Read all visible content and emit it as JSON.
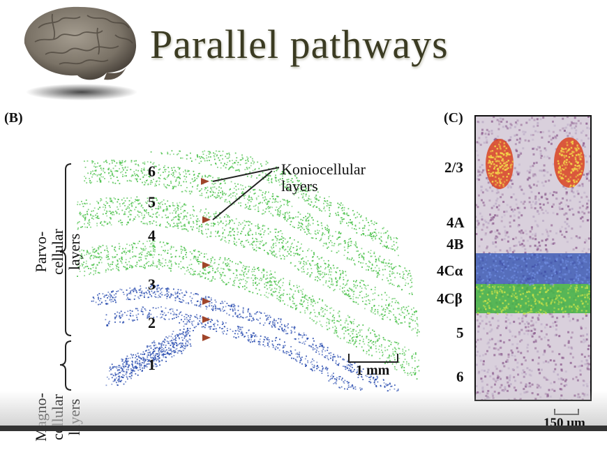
{
  "title": "Parallel pathways",
  "panel_b": {
    "label": "(B)",
    "layers": [
      "6",
      "5",
      "4",
      "3",
      "2",
      "1"
    ],
    "koniocellular": [
      "Koniocellular",
      "layers"
    ],
    "parvo": [
      "Parvo-",
      "cellular",
      "layers"
    ],
    "magno": [
      "Magno-",
      "cellular",
      "layers"
    ],
    "scale": "1 mm"
  },
  "panel_c": {
    "label": "(C)",
    "layers": [
      "2/3",
      "4A",
      "4B",
      "4Cα",
      "4Cβ",
      "5",
      "6"
    ],
    "scale": "150 μm"
  },
  "colors": {
    "parvo_green": "#4cc24c",
    "magno_blue": "#2a4db0",
    "konio_marker": "#a0452a",
    "cortex_purple": "#8a5a8c"
  }
}
